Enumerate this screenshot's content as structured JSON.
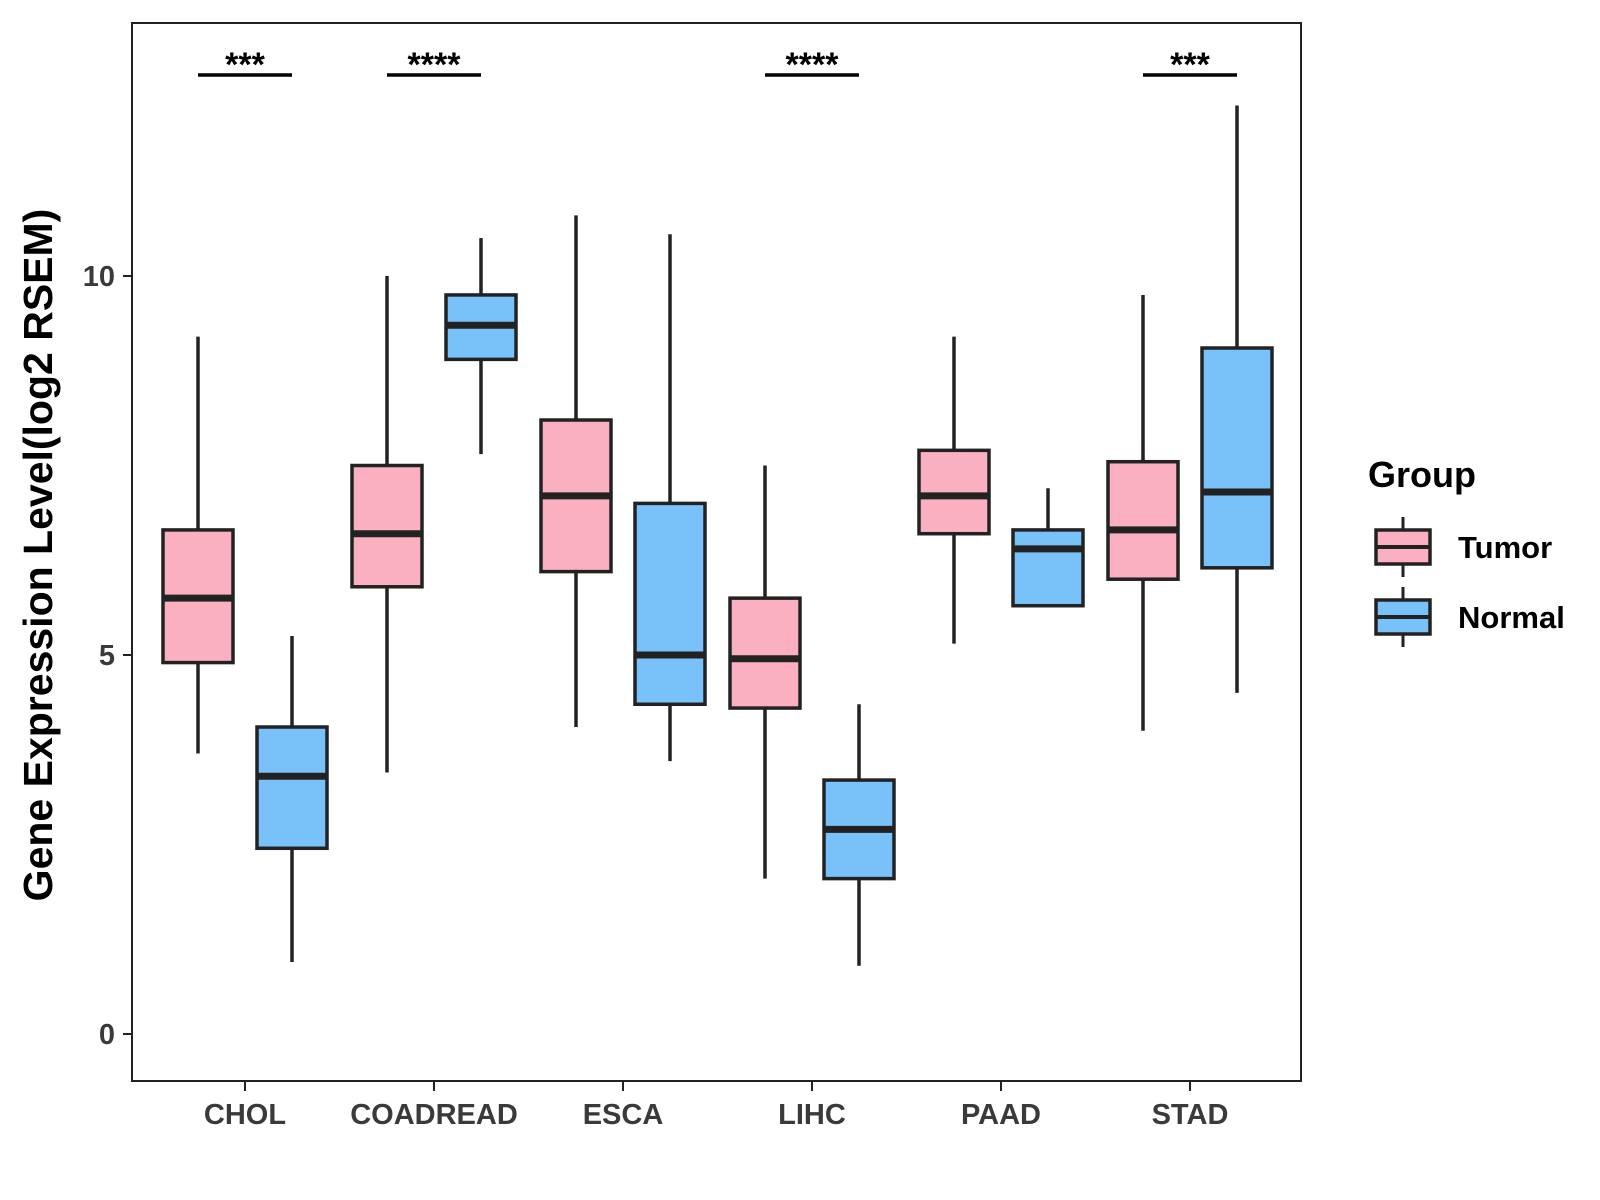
{
  "chart_data": {
    "type": "box",
    "title": "",
    "xlabel": "",
    "ylabel": "Gene Expression Level(log2 RSEM)",
    "ylim": [
      -0.6,
      13.35
    ],
    "yticks": [
      0,
      5,
      10
    ],
    "grid": false,
    "legend": {
      "title": "Group",
      "position": "right",
      "entries": [
        {
          "name": "Tumor",
          "color": "#FBB0C1"
        },
        {
          "name": "Normal",
          "color": "#79C1F9"
        }
      ]
    },
    "categories": [
      "CHOL",
      "COADREAD",
      "ESCA",
      "LIHC",
      "PAAD",
      "STAD"
    ],
    "series": [
      {
        "name": "Tumor",
        "color": "#FBB0C1",
        "boxes": [
          {
            "whisker_low": 3.7,
            "q1": 4.9,
            "median": 5.75,
            "q3": 6.65,
            "whisker_high": 9.2
          },
          {
            "whisker_low": 3.45,
            "q1": 5.9,
            "median": 6.6,
            "q3": 7.5,
            "whisker_high": 10.0
          },
          {
            "whisker_low": 4.05,
            "q1": 6.1,
            "median": 7.1,
            "q3": 8.1,
            "whisker_high": 10.8
          },
          {
            "whisker_low": 2.05,
            "q1": 4.3,
            "median": 4.95,
            "q3": 5.75,
            "whisker_high": 7.5
          },
          {
            "whisker_low": 5.15,
            "q1": 6.6,
            "median": 7.1,
            "q3": 7.7,
            "whisker_high": 9.2
          },
          {
            "whisker_low": 4.0,
            "q1": 6.0,
            "median": 6.65,
            "q3": 7.55,
            "whisker_high": 9.75
          }
        ]
      },
      {
        "name": "Normal",
        "color": "#79C1F9",
        "boxes": [
          {
            "whisker_low": 0.95,
            "q1": 2.45,
            "median": 3.4,
            "q3": 4.05,
            "whisker_high": 5.25
          },
          {
            "whisker_low": 7.65,
            "q1": 8.9,
            "median": 9.35,
            "q3": 9.75,
            "whisker_high": 10.5
          },
          {
            "whisker_low": 3.6,
            "q1": 4.35,
            "median": 5.0,
            "q3": 7.0,
            "whisker_high": 10.55
          },
          {
            "whisker_low": 0.9,
            "q1": 2.05,
            "median": 2.7,
            "q3": 3.35,
            "whisker_high": 4.35
          },
          {
            "whisker_low": 5.65,
            "q1": 5.65,
            "median": 6.4,
            "q3": 6.65,
            "whisker_high": 7.2
          },
          {
            "whisker_low": 4.5,
            "q1": 6.15,
            "median": 7.15,
            "q3": 9.05,
            "whisker_high": 12.25
          }
        ]
      }
    ],
    "significance": [
      {
        "category": "CHOL",
        "label": "***"
      },
      {
        "category": "COADREAD",
        "label": "****"
      },
      {
        "category": "ESCA",
        "label": ""
      },
      {
        "category": "LIHC",
        "label": "****"
      },
      {
        "category": "PAAD",
        "label": ""
      },
      {
        "category": "STAD",
        "label": "***"
      }
    ]
  }
}
